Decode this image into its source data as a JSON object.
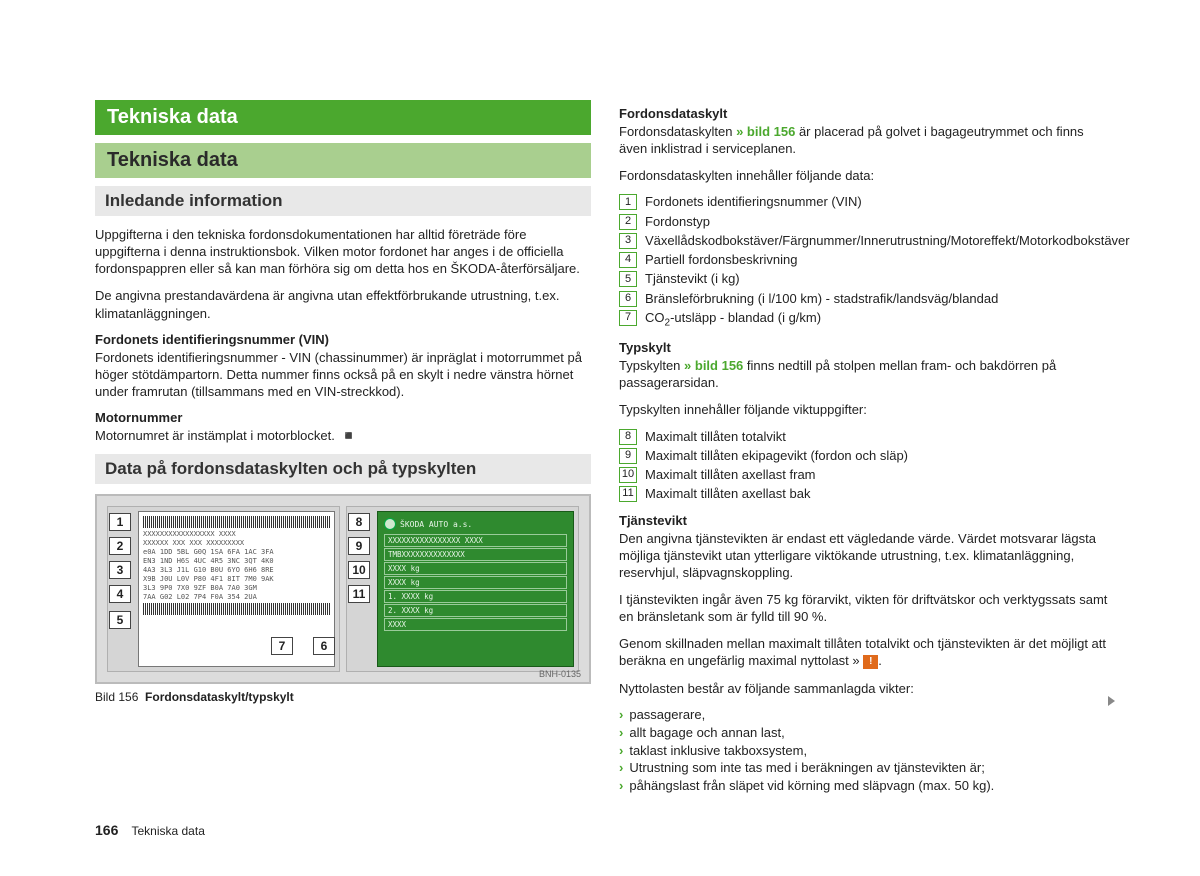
{
  "left": {
    "h1": "Tekniska data",
    "h2": "Tekniska data",
    "h3a": "Inledande information",
    "p1": "Uppgifterna i den tekniska fordonsdokumentationen har alltid företräde före uppgifterna i denna instruktionsbok. Vilken motor fordonet har anges i de officiella fordonspappren eller så kan man förhöra sig om detta hos en ŠKODA-återförsäljare.",
    "p2": "De angivna prestandavärdena är angivna utan effektförbrukande utrustning, t.ex. klimatanläggningen.",
    "sub1_head": "Fordonets identifieringsnummer (VIN)",
    "sub1_body": "Fordonets identifieringsnummer - VIN (chassinummer) är inpräglat i motorrummet på höger stötdämpartorn. Detta nummer finns också på en skylt i nedre vänstra hörnet under framrutan (tillsammans med en VIN-streckkod).",
    "sub2_head": "Motornummer",
    "sub2_body": "Motornumret är instämplat i motorblocket.",
    "h3b": "Data på fordonsdataskylten och på typskylten",
    "fig_code": "BNH-0135",
    "caption_num": "Bild 156",
    "caption_text": "Fordonsdataskylt/typskylt",
    "plate_rows": [
      "XXXXXXXXXXXXXXXXX    XXXX",
      "XXXXXX XXX       XXX  XXXXXXXXX",
      "e0A 1DD 5BL G0Q 1SA 6FA 1AC 3FA",
      "EN3 1ND H6S 4UC 4R5 3NC 3QT 4K0",
      "4A3 3L3 J1L G10 B0U 6YO 6H6 8RE",
      "X9B J0U L0V P80 4F1 8IT 7M0 9AK",
      "3L3 9P0       7X0 9ZF B0A 7A0 3GM",
      "7AA G02 L02 7P4 F0A     354 2UA"
    ],
    "typeplate": {
      "brand": "ŠKODA AUTO a.s.",
      "lines": [
        "XXXXXXXXXXXXXXXX   XXXX",
        "TMBXXXXXXXXXXXXXX",
        "XXXX kg",
        "XXXX kg",
        "1. XXXX kg",
        "2. XXXX kg",
        "XXXX"
      ]
    }
  },
  "right": {
    "sec1_head": "Fordonsdataskylt",
    "sec1_a": "Fordonsdataskylten ",
    "sec1_link": "» bild 156",
    "sec1_b": " är placerad på golvet i bagageutrymmet och finns även inklistrad i serviceplanen.",
    "sec1_intro": "Fordonsdataskylten innehåller följande data:",
    "list1": [
      "Fordonets identifieringsnummer (VIN)",
      "Fordonstyp",
      "Växellådskodbokstäver/Färgnummer/Innerutrustning/Motoreffekt/Motorkodbokstäver",
      "Partiell fordonsbeskrivning",
      "Tjänstevikt (i kg)",
      "Bränsleförbrukning (i l/100 km) - stadstrafik/landsväg/blandad",
      "CO₂-utsläpp - blandad (i g/km)"
    ],
    "sec2_head": "Typskylt",
    "sec2_a": "Typskylten ",
    "sec2_link": "» bild 156",
    "sec2_b": " finns nedtill på stolpen mellan fram- och bakdörren på passagerarsidan.",
    "sec2_intro": "Typskylten innehåller följande viktuppgifter:",
    "list2_start": 8,
    "list2": [
      "Maximalt tillåten totalvikt",
      "Maximalt tillåten ekipagevikt (fordon och släp)",
      "Maximalt tillåten axellast fram",
      "Maximalt tillåten axellast bak"
    ],
    "sec3_head": "Tjänstevikt",
    "sec3_p1": "Den angivna tjänstevikten är endast ett vägledande värde. Värdet motsvarar lägsta möjliga tjänstevikt utan ytterligare viktökande utrustning, t.ex. klimatanläggning, reservhjul, släpvagnskoppling.",
    "sec3_p2": "I tjänstevikten ingår även 75 kg förarvikt, vikten för driftvätskor och verktygssats samt en bränsletank som är fylld till 90 %.",
    "sec3_p3a": "Genom skillnaden mellan maximalt tillåten totalvikt och tjänstevikten är det möjligt att beräkna en ungefärlig maximal nyttolast » ",
    "sec3_p4": "Nyttolasten består av följande sammanlagda vikter:",
    "bullets": [
      "passagerare,",
      "allt bagage och annan last,",
      "taklast inklusive takboxsystem,",
      "Utrustning som inte tas med i beräkningen av tjänstevikten är;",
      "påhängslast från släpet vid körning med släpvagn (max. 50 kg)."
    ]
  },
  "footer": {
    "page": "166",
    "section": "Tekniska data"
  }
}
